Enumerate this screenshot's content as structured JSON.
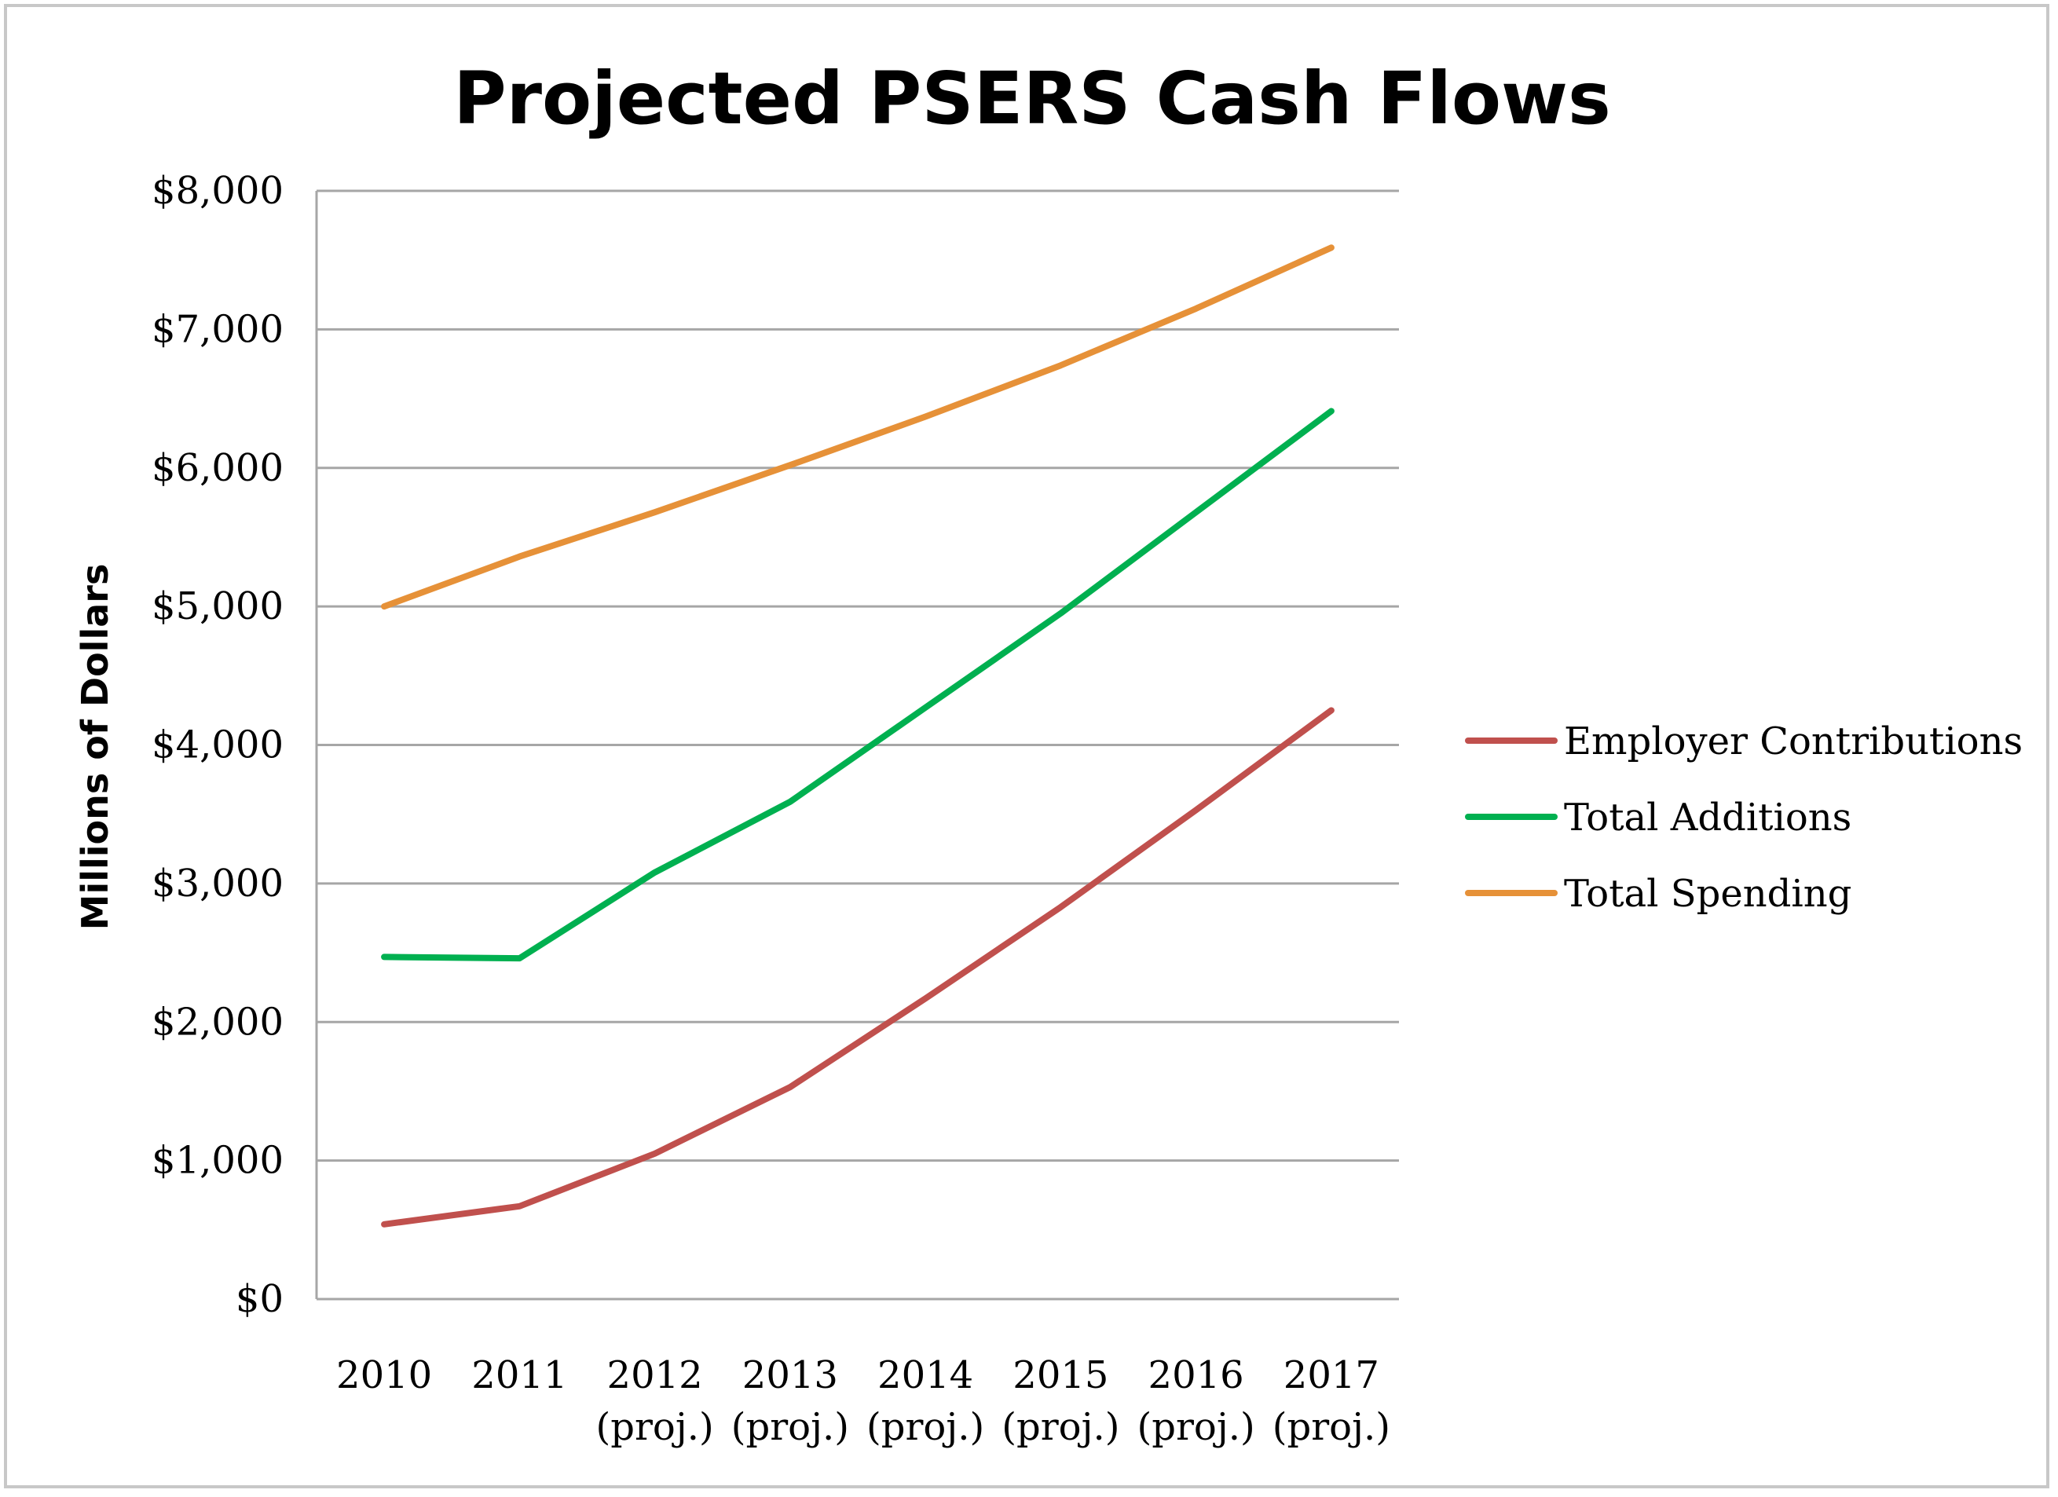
{
  "chart_data": {
    "type": "line",
    "title": "Projected PSERS Cash Flows",
    "xlabel": "",
    "ylabel": "Millions of Dollars",
    "ylim": [
      0,
      8000
    ],
    "yticks": [
      0,
      1000,
      2000,
      3000,
      4000,
      5000,
      6000,
      7000,
      8000
    ],
    "ytick_labels": [
      "$0",
      "$1,000",
      "$2,000",
      "$3,000",
      "$4,000",
      "$5,000",
      "$6,000",
      "$7,000",
      "$8,000"
    ],
    "categories": [
      {
        "year": "2010",
        "note": ""
      },
      {
        "year": "2011",
        "note": ""
      },
      {
        "year": "2012",
        "note": "(proj.)"
      },
      {
        "year": "2013",
        "note": "(proj.)"
      },
      {
        "year": "2014",
        "note": "(proj.)"
      },
      {
        "year": "2015",
        "note": "(proj.)"
      },
      {
        "year": "2016",
        "note": "(proj.)"
      },
      {
        "year": "2017",
        "note": "(proj.)"
      }
    ],
    "grid": true,
    "legend_position": "right",
    "series": [
      {
        "name": "Employer Contributions",
        "color": "#c0504d",
        "values": [
          540,
          670,
          1050,
          1530,
          2170,
          2830,
          3530,
          4250
        ]
      },
      {
        "name": "Total Additions",
        "color": "#00b050",
        "values": [
          2470,
          2460,
          3080,
          3590,
          4270,
          4950,
          5680,
          6410
        ]
      },
      {
        "name": "Total Spending",
        "color": "#e69138",
        "values": [
          5000,
          5360,
          5680,
          6020,
          6370,
          6740,
          7150,
          7590
        ]
      }
    ]
  }
}
